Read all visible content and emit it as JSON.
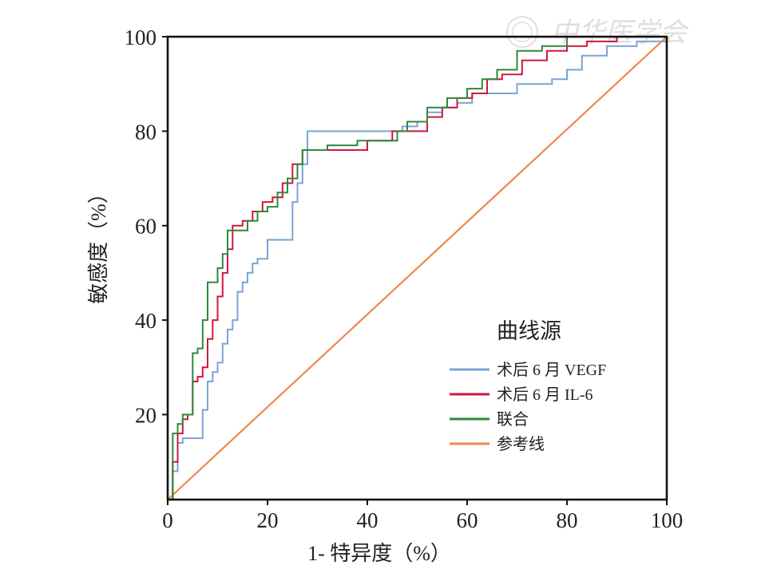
{
  "chart_data": {
    "type": "line",
    "title": "",
    "xlabel": "1- 特异度（%）",
    "ylabel": "敏感度（%）",
    "xlim": [
      0,
      100
    ],
    "ylim": [
      2,
      100
    ],
    "x_ticks": [
      "0",
      "20",
      "40",
      "60",
      "80",
      "100"
    ],
    "y_ticks": [
      "20",
      "40",
      "60",
      "80",
      "100"
    ],
    "legend": {
      "title": "曲线源",
      "placement": "lower-right"
    },
    "series": [
      {
        "name": "术后 6 月 VEGF",
        "color": "#7aa3d4",
        "style": "step",
        "x": [
          0,
          1,
          1,
          2,
          2,
          3,
          3,
          4,
          4,
          7,
          7,
          8,
          8,
          9,
          9,
          10,
          10,
          11,
          11,
          12,
          12,
          13,
          13,
          14,
          14,
          15,
          15,
          16,
          16,
          17,
          17,
          18,
          18,
          20,
          20,
          22,
          22,
          25,
          25,
          26,
          26,
          27,
          27,
          28,
          28,
          40,
          40,
          47,
          47,
          50,
          50,
          52,
          52,
          55,
          55,
          58,
          58,
          61,
          61,
          70,
          70,
          77,
          77,
          80,
          80,
          83,
          83,
          88,
          88,
          94,
          94,
          100
        ],
        "y": [
          2,
          2,
          8,
          8,
          14,
          14,
          15,
          15,
          15,
          15,
          21,
          21,
          27,
          27,
          29,
          29,
          31,
          31,
          35,
          35,
          38,
          38,
          40,
          40,
          46,
          46,
          48,
          48,
          50,
          50,
          52,
          52,
          53,
          53,
          57,
          57,
          57,
          57,
          65,
          65,
          69,
          69,
          73,
          73,
          80,
          80,
          80,
          80,
          81,
          81,
          82,
          82,
          84,
          84,
          85,
          85,
          86,
          86,
          88,
          88,
          90,
          90,
          91,
          91,
          93,
          93,
          96,
          96,
          98,
          98,
          99,
          99
        ]
      },
      {
        "name": "术后 6 月 IL-6",
        "color": "#d0173f",
        "style": "step",
        "x": [
          0,
          1,
          1,
          2,
          2,
          3,
          3,
          4,
          4,
          5,
          5,
          6,
          6,
          7,
          7,
          8,
          8,
          9,
          9,
          10,
          10,
          11,
          11,
          12,
          12,
          13,
          13,
          15,
          15,
          17,
          17,
          19,
          19,
          21,
          21,
          23,
          23,
          25,
          25,
          27,
          27,
          35,
          35,
          40,
          40,
          45,
          45,
          52,
          52,
          55,
          55,
          58,
          58,
          61,
          61,
          64,
          64,
          67,
          67,
          71,
          71,
          76,
          76,
          80,
          80,
          84,
          84,
          90,
          90,
          100
        ],
        "y": [
          2,
          2,
          10,
          10,
          16,
          16,
          19,
          19,
          20,
          20,
          27,
          27,
          28,
          28,
          30,
          30,
          36,
          36,
          40,
          40,
          45,
          45,
          50,
          50,
          55,
          55,
          60,
          60,
          61,
          61,
          63,
          63,
          65,
          65,
          66,
          66,
          69,
          69,
          73,
          73,
          76,
          76,
          76,
          76,
          78,
          78,
          80,
          80,
          83,
          83,
          85,
          85,
          87,
          87,
          88,
          88,
          91,
          91,
          92,
          92,
          95,
          95,
          97,
          97,
          98,
          98,
          99,
          99,
          100,
          100
        ]
      },
      {
        "name": "联合",
        "color": "#2d8a3a",
        "style": "step",
        "x": [
          0,
          1,
          1,
          2,
          2,
          3,
          3,
          4,
          4,
          5,
          5,
          6,
          6,
          7,
          7,
          8,
          8,
          10,
          10,
          11,
          11,
          12,
          12,
          14,
          14,
          16,
          16,
          18,
          18,
          20,
          20,
          22,
          22,
          24,
          24,
          26,
          26,
          27,
          27,
          32,
          32,
          38,
          38,
          46,
          46,
          48,
          48,
          52,
          52,
          56,
          56,
          60,
          60,
          63,
          63,
          66,
          66,
          70,
          70,
          75,
          75,
          80,
          80,
          86,
          86,
          100
        ],
        "y": [
          2,
          2,
          16,
          16,
          18,
          18,
          20,
          20,
          20,
          20,
          33,
          33,
          34,
          34,
          40,
          40,
          48,
          48,
          51,
          51,
          54,
          54,
          59,
          59,
          59,
          59,
          61,
          61,
          63,
          63,
          64,
          64,
          67,
          67,
          70,
          70,
          73,
          73,
          76,
          76,
          77,
          77,
          78,
          78,
          80,
          80,
          82,
          82,
          85,
          85,
          87,
          87,
          89,
          89,
          91,
          91,
          93,
          93,
          97,
          97,
          98,
          98,
          100,
          100,
          100,
          100
        ]
      },
      {
        "name": "参考线",
        "color": "#f0874a",
        "style": "line",
        "x": [
          0,
          100
        ],
        "y": [
          2,
          100
        ]
      }
    ]
  },
  "watermark": {
    "text": "中华医学会"
  }
}
